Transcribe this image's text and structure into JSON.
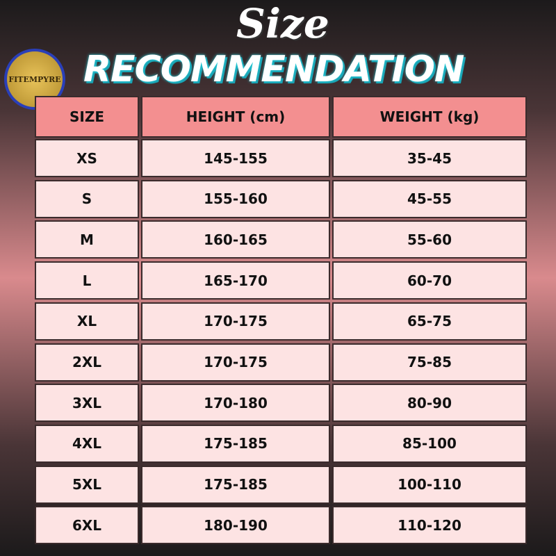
{
  "header": {
    "title_script": "Size",
    "title": "RECOMMENDATION",
    "logo": "FITEMPYRE"
  },
  "table": {
    "columns": [
      "SIZE",
      "HEIGHT (cm)",
      "WEIGHT (kg)"
    ],
    "rows": [
      [
        "XS",
        "145-155",
        "35-45"
      ],
      [
        "S",
        "155-160",
        "45-55"
      ],
      [
        "M",
        "160-165",
        "55-60"
      ],
      [
        "L",
        "165-170",
        "60-70"
      ],
      [
        "XL",
        "170-175",
        "65-75"
      ],
      [
        "2XL",
        "170-175",
        "75-85"
      ],
      [
        "3XL",
        "170-180",
        "80-90"
      ],
      [
        "4XL",
        "175-185",
        "85-100"
      ],
      [
        "5XL",
        "175-185",
        "100-110"
      ],
      [
        "6XL",
        "180-190",
        "110-120"
      ]
    ]
  }
}
